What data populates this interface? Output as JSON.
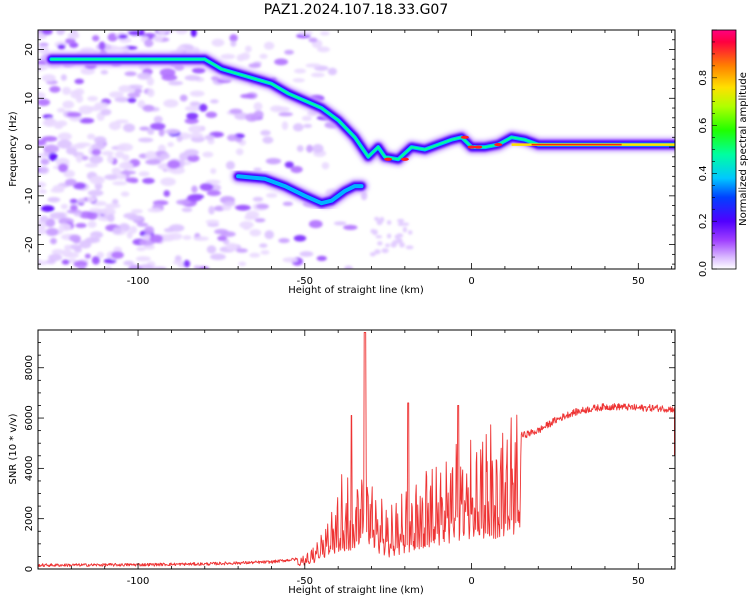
{
  "title": "PAZ1.2024.107.18.33.G07",
  "chart_data": [
    {
      "type": "heatmap",
      "xlabel": "Height of straight line (km)",
      "ylabel": "Frequency (Hz)",
      "xlim": [
        -130,
        61
      ],
      "ylim": [
        -25,
        24
      ],
      "xticks": [
        -100,
        -50,
        0,
        50
      ],
      "yticks": [
        -20,
        -10,
        0,
        10,
        20
      ],
      "colorbar": {
        "label": "Normalized spectral amplitude",
        "range": [
          0,
          1
        ],
        "ticks": [
          0.0,
          0.2,
          0.4,
          0.6,
          0.8
        ]
      },
      "ridge": {
        "x": [
          -126,
          -120,
          -95,
          -85,
          -80,
          -75,
          -70,
          -65,
          -60,
          -55,
          -50,
          -45,
          -40,
          -35,
          -31,
          -28,
          -26,
          -22,
          -18,
          -14,
          -10,
          -6,
          -3,
          0,
          4,
          8,
          12,
          16,
          20,
          30,
          40,
          50,
          61
        ],
        "y": [
          18,
          18,
          18,
          18,
          18,
          16,
          15,
          14,
          13,
          11,
          9.5,
          8,
          5.5,
          2,
          -2,
          0,
          -2,
          -2.5,
          0,
          -0.5,
          0.5,
          1.5,
          2,
          0,
          0,
          0.5,
          2,
          1.5,
          0.5,
          0.5,
          0.5,
          0.5,
          0.5
        ]
      },
      "lower_branch": {
        "x": [
          -70,
          -62,
          -56,
          -50,
          -45,
          -42,
          -38,
          -35,
          -33
        ],
        "y": [
          -6,
          -6.5,
          -8,
          -10,
          -11.5,
          -11,
          -9,
          -8,
          -8
        ]
      }
    },
    {
      "type": "line",
      "xlabel": "Height of straight line (km)",
      "ylabel": "SNR (10 * v/v)",
      "xlim": [
        -130,
        61
      ],
      "ylim": [
        0,
        9500
      ],
      "xticks": [
        -100,
        -50,
        0,
        50
      ],
      "yticks": [
        0,
        2000,
        4000,
        6000,
        8000
      ],
      "color": "#ee3333",
      "envelope": {
        "x": [
          -130,
          -100,
          -80,
          -60,
          -52,
          -48,
          -44,
          -40,
          -36,
          -34,
          -32,
          -30,
          -28,
          -25,
          -20,
          -15,
          -10,
          -5,
          0,
          5,
          10,
          15,
          20,
          25,
          30,
          35,
          40,
          45,
          50,
          55,
          61
        ],
        "y": [
          150,
          170,
          200,
          280,
          400,
          700,
          1600,
          2500,
          3000,
          3600,
          3800,
          3500,
          2400,
          1800,
          2500,
          3300,
          3700,
          4000,
          4300,
          4700,
          5000,
          5300,
          5500,
          5900,
          6200,
          6350,
          6450,
          6450,
          6400,
          6400,
          6350
        ]
      }
    }
  ]
}
